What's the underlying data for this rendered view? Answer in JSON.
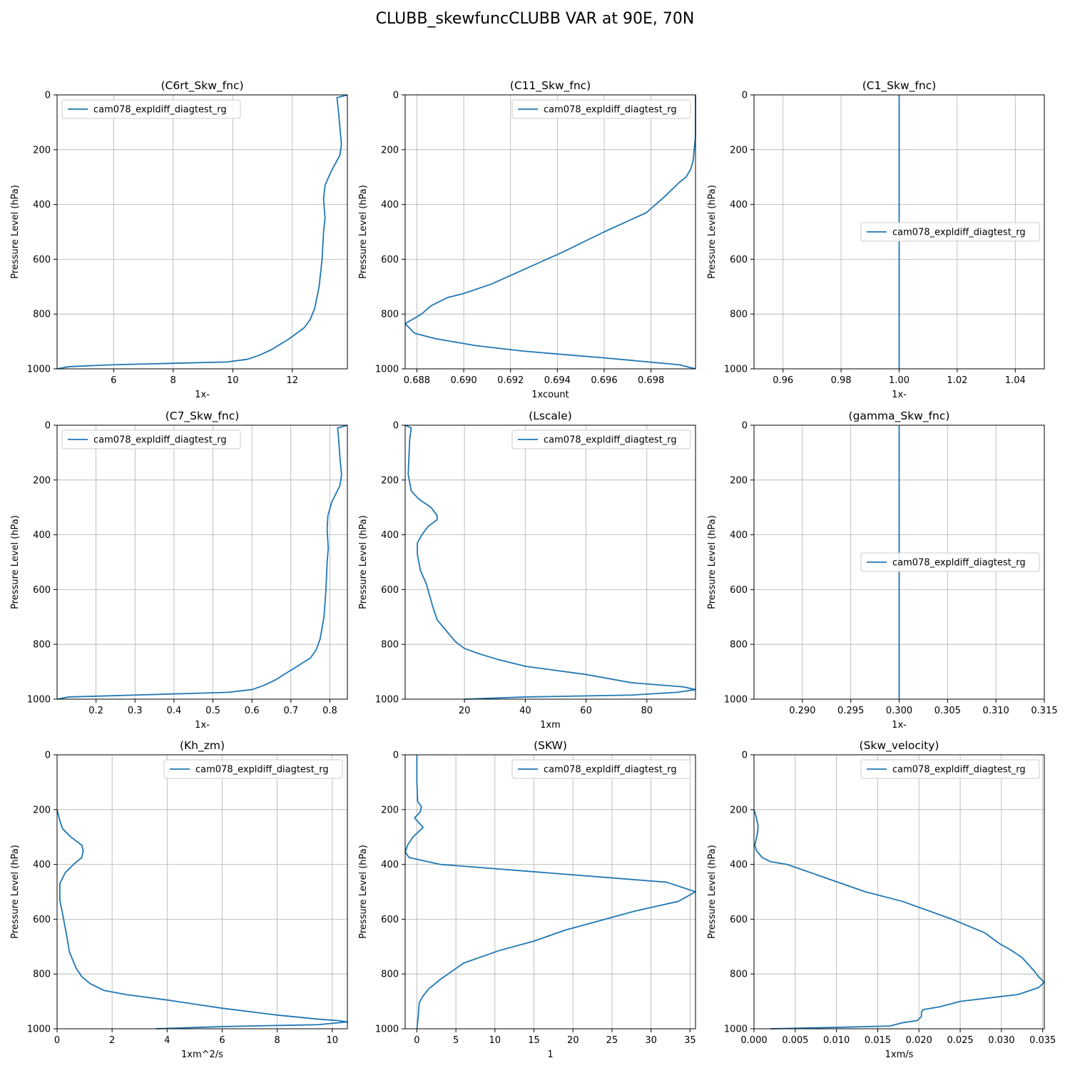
{
  "figure": {
    "title": "CLUBB_skewfuncCLUBB VAR at 90E, 70N",
    "line_color": "#1f77b4"
  },
  "chart_data": [
    {
      "type": "line",
      "title": "(C6rt_Skw_fnc)",
      "xlabel": "1x-",
      "ylabel": "Pressure Level (hPa)",
      "xlim": [
        4.1,
        13.85
      ],
      "ylim": [
        1000,
        0
      ],
      "xticks": [
        6,
        8,
        10,
        12
      ],
      "xtick_labels": [
        "6",
        "8",
        "10",
        "12"
      ],
      "yticks": [
        0,
        200,
        400,
        600,
        800,
        1000
      ],
      "ytick_labels": [
        "0",
        "200",
        "400",
        "600",
        "800",
        "1000"
      ],
      "grid": true,
      "legend_position": "upper-left",
      "series": [
        {
          "name": "cam078_expldiff_diagtest_rg",
          "x": [
            13.85,
            13.5,
            13.55,
            13.6,
            13.65,
            13.6,
            13.3,
            13.1,
            13.05,
            13.1,
            13.05,
            13.0,
            12.9,
            12.75,
            12.6,
            12.4,
            11.9,
            11.3,
            10.9,
            10.5,
            9.8,
            6.0,
            4.5,
            4.1
          ],
          "y": [
            0,
            10,
            60,
            120,
            180,
            220,
            280,
            330,
            380,
            450,
            500,
            600,
            700,
            780,
            820,
            850,
            890,
            930,
            950,
            965,
            975,
            985,
            992,
            1000
          ]
        }
      ]
    },
    {
      "type": "line",
      "title": "(C11_Skw_fnc)",
      "xlabel": "1xcount",
      "ylabel": "Pressure Level (hPa)",
      "xlim": [
        0.6875,
        0.6999
      ],
      "ylim": [
        1000,
        0
      ],
      "xticks": [
        0.688,
        0.69,
        0.692,
        0.694,
        0.696,
        0.698
      ],
      "xtick_labels": [
        "0.688",
        "0.690",
        "0.692",
        "0.694",
        "0.696",
        "0.698"
      ],
      "yticks": [
        0,
        200,
        400,
        600,
        800,
        1000
      ],
      "ytick_labels": [
        "0",
        "200",
        "400",
        "600",
        "800",
        "1000"
      ],
      "grid": true,
      "legend_position": "upper-right",
      "series": [
        {
          "name": "cam078_expldiff_diagtest_rg",
          "x": [
            0.6999,
            0.6999,
            0.6998,
            0.6997,
            0.6995,
            0.6992,
            0.6986,
            0.6978,
            0.696,
            0.6942,
            0.6925,
            0.6912,
            0.69,
            0.6893,
            0.6886,
            0.6882,
            0.6875,
            0.6879,
            0.6888,
            0.6905,
            0.6925,
            0.696,
            0.6992,
            0.6999
          ],
          "y": [
            0,
            150,
            240,
            270,
            300,
            320,
            370,
            430,
            500,
            575,
            640,
            690,
            725,
            740,
            770,
            800,
            835,
            870,
            890,
            915,
            935,
            960,
            985,
            1000
          ]
        }
      ]
    },
    {
      "type": "line",
      "title": "(C1_Skw_fnc)",
      "xlabel": "1x-",
      "ylabel": "Pressure Level (hPa)",
      "xlim": [
        0.95,
        1.05
      ],
      "ylim": [
        1000,
        0
      ],
      "xticks": [
        0.96,
        0.98,
        1.0,
        1.02,
        1.04
      ],
      "xtick_labels": [
        "0.96",
        "0.98",
        "1.00",
        "1.02",
        "1.04"
      ],
      "yticks": [
        0,
        200,
        400,
        600,
        800,
        1000
      ],
      "ytick_labels": [
        "0",
        "200",
        "400",
        "600",
        "800",
        "1000"
      ],
      "grid": true,
      "legend_position": "center-right",
      "series": [
        {
          "name": "cam078_expldiff_diagtest_rg",
          "x": [
            1.0,
            1.0
          ],
          "y": [
            0,
            1000
          ]
        }
      ]
    },
    {
      "type": "line",
      "title": "(C7_Skw_fnc)",
      "xlabel": "1x-",
      "ylabel": "Pressure Level (hPa)",
      "xlim": [
        0.1,
        0.845
      ],
      "ylim": [
        1000,
        0
      ],
      "xticks": [
        0.2,
        0.3,
        0.4,
        0.5,
        0.6,
        0.7,
        0.8
      ],
      "xtick_labels": [
        "0.2",
        "0.3",
        "0.4",
        "0.5",
        "0.6",
        "0.7",
        "0.8"
      ],
      "yticks": [
        0,
        200,
        400,
        600,
        800,
        1000
      ],
      "ytick_labels": [
        "0",
        "200",
        "400",
        "600",
        "800",
        "1000"
      ],
      "grid": true,
      "legend_position": "upper-left",
      "series": [
        {
          "name": "cam078_expldiff_diagtest_rg",
          "x": [
            0.845,
            0.82,
            0.823,
            0.826,
            0.83,
            0.826,
            0.805,
            0.795,
            0.793,
            0.796,
            0.793,
            0.79,
            0.785,
            0.775,
            0.765,
            0.75,
            0.705,
            0.66,
            0.63,
            0.6,
            0.54,
            0.3,
            0.13,
            0.1
          ],
          "y": [
            0,
            10,
            60,
            120,
            180,
            220,
            280,
            330,
            380,
            450,
            500,
            600,
            700,
            780,
            820,
            850,
            890,
            930,
            950,
            965,
            975,
            985,
            992,
            1000
          ]
        }
      ]
    },
    {
      "type": "line",
      "title": "(Lscale)",
      "xlabel": "1xm",
      "ylabel": "Pressure Level (hPa)",
      "xlim": [
        0.5,
        96
      ],
      "ylim": [
        1000,
        0
      ],
      "xticks": [
        20,
        40,
        60,
        80
      ],
      "xtick_labels": [
        "20",
        "40",
        "60",
        "80"
      ],
      "yticks": [
        0,
        200,
        400,
        600,
        800,
        1000
      ],
      "ytick_labels": [
        "0",
        "200",
        "400",
        "600",
        "800",
        "1000"
      ],
      "grid": true,
      "legend_position": "upper-right",
      "series": [
        {
          "name": "cam078_expldiff_diagtest_rg",
          "x": [
            0.5,
            2.5,
            2.0,
            1.8,
            1.5,
            2.5,
            5.0,
            9.0,
            11.0,
            11.0,
            8.0,
            6.0,
            4.5,
            4.5,
            5.5,
            7.5,
            9.5,
            11.0,
            14.0,
            17.0,
            20.0,
            25.0,
            31.0,
            40.0,
            60.0,
            75.0,
            92.0,
            96.0,
            90.0,
            75.0,
            40.0,
            20.0
          ],
          "y": [
            0,
            10,
            50,
            100,
            180,
            240,
            270,
            300,
            330,
            345,
            370,
            400,
            430,
            470,
            530,
            580,
            660,
            710,
            750,
            790,
            815,
            835,
            855,
            880,
            910,
            940,
            955,
            965,
            975,
            985,
            992,
            1000
          ]
        }
      ]
    },
    {
      "type": "line",
      "title": "(gamma_Skw_fnc)",
      "xlabel": "1x-",
      "ylabel": "Pressure Level (hPa)",
      "xlim": [
        0.285,
        0.315
      ],
      "ylim": [
        1000,
        0
      ],
      "xticks": [
        0.29,
        0.295,
        0.3,
        0.305,
        0.31,
        0.315
      ],
      "xtick_labels": [
        "0.290",
        "0.295",
        "0.300",
        "0.305",
        "0.310",
        "0.315"
      ],
      "yticks": [
        0,
        200,
        400,
        600,
        800,
        1000
      ],
      "ytick_labels": [
        "0",
        "200",
        "400",
        "600",
        "800",
        "1000"
      ],
      "grid": true,
      "legend_position": "center-right",
      "series": [
        {
          "name": "cam078_expldiff_diagtest_rg",
          "x": [
            0.3,
            0.3
          ],
          "y": [
            0,
            1000
          ]
        }
      ]
    },
    {
      "type": "line",
      "title": "(Kh_zm)",
      "xlabel": "1xm^2/s",
      "ylabel": "Pressure Level (hPa)",
      "xlim": [
        0,
        10.55
      ],
      "ylim": [
        1000,
        0
      ],
      "xticks": [
        0,
        2,
        4,
        6,
        8,
        10
      ],
      "xtick_labels": [
        "0",
        "2",
        "4",
        "6",
        "8",
        "10"
      ],
      "yticks": [
        0,
        200,
        400,
        600,
        800,
        1000
      ],
      "ytick_labels": [
        "0",
        "200",
        "400",
        "600",
        "800",
        "1000"
      ],
      "grid": true,
      "legend_position": "upper-right",
      "series": [
        {
          "name": "cam078_expldiff_diagtest_rg",
          "x": [
            0.0,
            0.1,
            0.2,
            0.5,
            0.9,
            0.95,
            0.9,
            0.6,
            0.3,
            0.1,
            0.1,
            0.2,
            0.35,
            0.45,
            0.7,
            0.9,
            1.2,
            1.7,
            2.5,
            4.0,
            6.0,
            8.0,
            9.5,
            10.2,
            10.55,
            9.5,
            6.0,
            3.6
          ],
          "y": [
            200,
            240,
            270,
            300,
            330,
            350,
            375,
            400,
            430,
            470,
            530,
            580,
            660,
            720,
            780,
            810,
            835,
            860,
            875,
            895,
            925,
            950,
            965,
            970,
            975,
            985,
            992,
            1000
          ]
        }
      ]
    },
    {
      "type": "line",
      "title": "(SKW)",
      "xlabel": "1",
      "ylabel": "Pressure Level (hPa)",
      "xlim": [
        -1.5,
        35.7
      ],
      "ylim": [
        1000,
        0
      ],
      "xticks": [
        0,
        5,
        10,
        15,
        20,
        25,
        30,
        35
      ],
      "xtick_labels": [
        "0",
        "5",
        "10",
        "15",
        "20",
        "25",
        "30",
        "35"
      ],
      "yticks": [
        0,
        200,
        400,
        600,
        800,
        1000
      ],
      "ytick_labels": [
        "0",
        "200",
        "400",
        "600",
        "800",
        "1000"
      ],
      "grid": true,
      "legend_position": "upper-right",
      "series": [
        {
          "name": "cam078_expldiff_diagtest_rg",
          "x": [
            0.0,
            0.0,
            0.1,
            0.6,
            0.4,
            -0.3,
            0.8,
            -0.5,
            -1.2,
            -1.5,
            -1.0,
            3.0,
            32.0,
            35.7,
            33.5,
            28.0,
            19.0,
            15.0,
            10.5,
            6.0,
            4.5,
            3.0,
            1.5,
            0.8,
            0.3,
            0.2,
            0.1,
            0.0
          ],
          "y": [
            0,
            100,
            170,
            190,
            210,
            230,
            265,
            300,
            330,
            355,
            375,
            400,
            465,
            500,
            535,
            570,
            640,
            680,
            715,
            760,
            790,
            820,
            855,
            880,
            905,
            945,
            975,
            1000
          ]
        }
      ]
    },
    {
      "type": "line",
      "title": "(Skw_velocity)",
      "xlabel": "1xm/s",
      "ylabel": "Pressure Level (hPa)",
      "xlim": [
        0,
        0.0352
      ],
      "ylim": [
        1000,
        0
      ],
      "xticks": [
        0.0,
        0.005,
        0.01,
        0.015,
        0.02,
        0.025,
        0.03,
        0.035
      ],
      "xtick_labels": [
        "0.000",
        "0.005",
        "0.010",
        "0.015",
        "0.020",
        "0.025",
        "0.030",
        "0.035"
      ],
      "yticks": [
        0,
        200,
        400,
        600,
        800,
        1000
      ],
      "ytick_labels": [
        "0",
        "200",
        "400",
        "600",
        "800",
        "1000"
      ],
      "grid": true,
      "legend_position": "upper-right",
      "series": [
        {
          "name": "cam078_expldiff_diagtest_rg",
          "x": [
            0.0,
            0.0003,
            0.0005,
            0.0004,
            0.0001,
            0.0003,
            0.001,
            0.002,
            0.004,
            0.0135,
            0.018,
            0.024,
            0.028,
            0.0298,
            0.031,
            0.0325,
            0.034,
            0.0345,
            0.0352,
            0.0345,
            0.032,
            0.025,
            0.0225,
            0.0205,
            0.0203,
            0.0203,
            0.0198,
            0.018,
            0.0165,
            0.01,
            0.002
          ],
          "y": [
            200,
            230,
            260,
            290,
            330,
            350,
            375,
            390,
            400,
            500,
            535,
            600,
            650,
            690,
            710,
            740,
            790,
            810,
            830,
            850,
            875,
            900,
            920,
            930,
            940,
            955,
            970,
            978,
            990,
            995,
            1000
          ]
        }
      ]
    }
  ]
}
